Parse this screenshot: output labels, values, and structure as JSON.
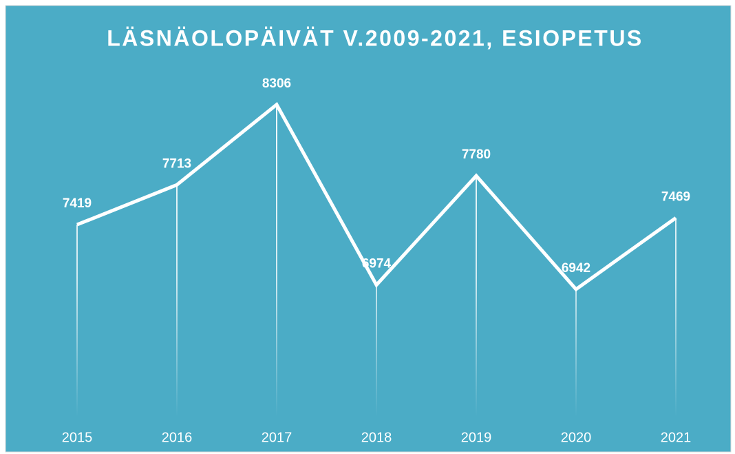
{
  "chart_data": {
    "type": "line",
    "title": "LÄSNÄOLOPÄIVÄT V.2009-2021, ESIOPETUS",
    "categories": [
      "2015",
      "2016",
      "2017",
      "2018",
      "2019",
      "2020",
      "2021"
    ],
    "values": [
      7419,
      7713,
      8306,
      6974,
      7780,
      6942,
      7469
    ],
    "color": "#ffffff",
    "ylim": [
      6000,
      8600
    ]
  }
}
